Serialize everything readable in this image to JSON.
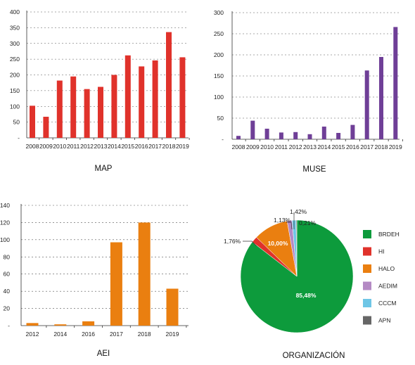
{
  "chart_data": [
    {
      "type": "bar",
      "title": "MAP",
      "categories": [
        "2008",
        "2009",
        "2010",
        "2011",
        "2012",
        "2013",
        "2014",
        "2015",
        "2016",
        "2017",
        "2018",
        "2019"
      ],
      "values": [
        102,
        67,
        182,
        195,
        155,
        162,
        200,
        262,
        227,
        246,
        336,
        256
      ],
      "yticks": [
        "400",
        "350",
        "300",
        "250",
        "200",
        "150",
        "100",
        "50",
        "-"
      ],
      "ylim": [
        0,
        400
      ],
      "grid": true,
      "colors": {
        "bar": "#e0322b"
      }
    },
    {
      "type": "bar",
      "title": "MUSE",
      "categories": [
        "2008",
        "2009",
        "2010",
        "2011",
        "2012",
        "2013",
        "2014",
        "2015",
        "2016",
        "2017",
        "2018",
        "2019"
      ],
      "values": [
        8,
        44,
        25,
        16,
        17,
        12,
        30,
        15,
        34,
        163,
        195,
        266
      ],
      "yticks": [
        "300",
        "250",
        "200",
        "150",
        "100",
        "50",
        "-"
      ],
      "ylim": [
        0,
        300
      ],
      "grid": true,
      "colors": {
        "bar": "#6f3f97"
      }
    },
    {
      "type": "bar",
      "title": "AEI",
      "categories": [
        "2012",
        "2014",
        "2016",
        "2017",
        "2018",
        "2019"
      ],
      "values": [
        3,
        1.5,
        5,
        97,
        120,
        43
      ],
      "yticks": [
        "140",
        "120",
        "100",
        "80",
        "60",
        "40",
        "20",
        "-"
      ],
      "ylim": [
        0,
        140
      ],
      "grid": true,
      "colors": {
        "bar": "#ea7f10"
      }
    },
    {
      "type": "pie",
      "title": "ORGANIZACIÓN",
      "legend_position": "right",
      "slices": [
        {
          "name": "BRDEH",
          "value": 85.48,
          "label": "85,48%",
          "color": "#0d9b3c"
        },
        {
          "name": "HI",
          "value": 1.76,
          "label": "1,76%",
          "color": "#e0322b"
        },
        {
          "name": "HALO",
          "value": 10.0,
          "label": "10,00%",
          "color": "#ea7f10"
        },
        {
          "name": "AEDIM",
          "value": 1.42,
          "label": "1,42%",
          "color": "#b48ac4"
        },
        {
          "name": "CCCM",
          "value": 1.13,
          "label": "1,13%",
          "color": "#6ec6e6"
        },
        {
          "name": "APN",
          "value": 0.21,
          "label": "0,21%",
          "color": "#666666"
        }
      ]
    }
  ]
}
